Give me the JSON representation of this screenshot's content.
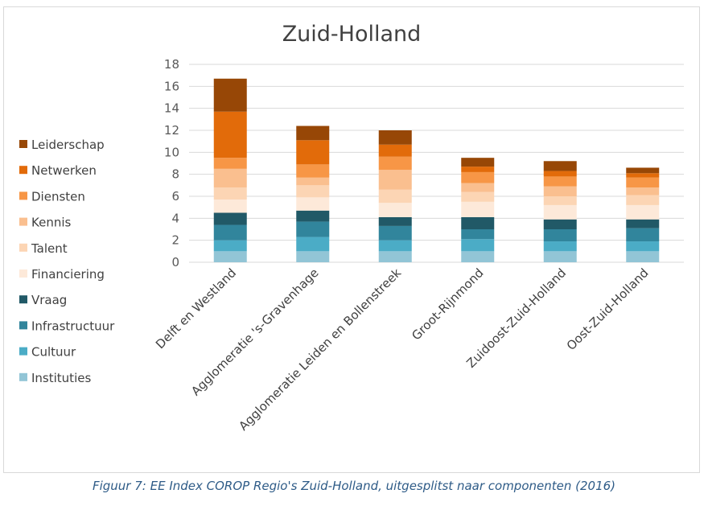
{
  "caption": "Figuur 7: EE Index COROP Regio's Zuid-Holland, uitgesplitst naar componenten (2016)",
  "chart_data": {
    "type": "bar",
    "stacked": true,
    "title": "Zuid-Holland",
    "xlabel": "",
    "ylabel": "",
    "ylim": [
      0,
      18
    ],
    "yticks": [
      0,
      2,
      4,
      6,
      8,
      10,
      12,
      14,
      16,
      18
    ],
    "grid": true,
    "legend_position": "left",
    "categories": [
      "Delft en Westland",
      "Agglomeratie 's-Gravenhage",
      "Agglomeratie Leiden en Bollenstreek",
      "Groot-Rijnmond",
      "Zuidoost-Zuid-Holland",
      "Oost-Zuid-Holland"
    ],
    "series": [
      {
        "name": "Instituties",
        "color": "#92c5d6",
        "values": [
          1.0,
          1.0,
          1.0,
          1.0,
          1.0,
          1.0
        ]
      },
      {
        "name": "Cultuur",
        "color": "#4bacc6",
        "values": [
          1.0,
          1.3,
          1.0,
          1.1,
          0.9,
          0.9
        ]
      },
      {
        "name": "Infrastructuur",
        "color": "#31859c",
        "values": [
          1.4,
          1.4,
          1.3,
          0.9,
          1.1,
          1.2
        ]
      },
      {
        "name": "Vraag",
        "color": "#215967",
        "values": [
          1.1,
          1.0,
          0.8,
          1.1,
          0.9,
          0.8
        ]
      },
      {
        "name": "Financiering",
        "color": "#fde9d9",
        "values": [
          1.2,
          1.2,
          1.3,
          1.4,
          1.3,
          1.3
        ]
      },
      {
        "name": "Talent",
        "color": "#fcd5b4",
        "values": [
          1.1,
          1.1,
          1.2,
          0.9,
          0.8,
          0.9
        ]
      },
      {
        "name": "Kennis",
        "color": "#fabf8f",
        "values": [
          1.7,
          0.7,
          1.8,
          0.8,
          0.9,
          0.7
        ]
      },
      {
        "name": "Diensten",
        "color": "#f79646",
        "values": [
          1.0,
          1.2,
          1.2,
          1.0,
          0.9,
          0.9
        ]
      },
      {
        "name": "Netwerken",
        "color": "#e26b0a",
        "values": [
          4.2,
          2.2,
          1.1,
          0.5,
          0.5,
          0.4
        ]
      },
      {
        "name": "Leiderschap",
        "color": "#974706",
        "values": [
          3.0,
          1.3,
          1.3,
          0.8,
          0.9,
          0.5
        ]
      }
    ]
  }
}
